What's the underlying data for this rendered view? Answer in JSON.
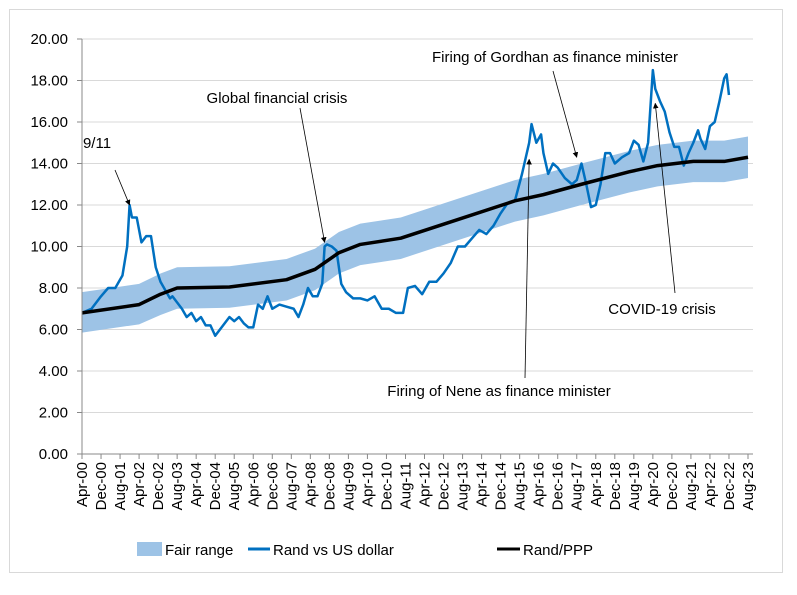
{
  "chart_data": {
    "type": "line",
    "title": "",
    "xlabel": "",
    "ylabel": "",
    "ylim": [
      0,
      20
    ],
    "y_ticks": [
      "0.00",
      "2.00",
      "4.00",
      "6.00",
      "8.00",
      "10.00",
      "12.00",
      "14.00",
      "16.00",
      "18.00",
      "20.00"
    ],
    "x_range": [
      "2000-04",
      "2023-08"
    ],
    "x_tick_labels": [
      "Apr-00",
      "Dec-00",
      "Aug-01",
      "Apr-02",
      "Dec-02",
      "Aug-03",
      "Apr-04",
      "Dec-04",
      "Aug-05",
      "Apr-06",
      "Dec-06",
      "Aug-07",
      "Apr-08",
      "Dec-08",
      "Aug-09",
      "Apr-10",
      "Dec-10",
      "Aug-11",
      "Apr-12",
      "Dec-12",
      "Aug-13",
      "Apr-14",
      "Dec-14",
      "Aug-15",
      "Apr-16",
      "Dec-16",
      "Aug-17",
      "Apr-18",
      "Dec-18",
      "Aug-19",
      "Apr-20",
      "Dec-20",
      "Aug-21",
      "Apr-22",
      "Dec-22",
      "Aug-23"
    ],
    "grid": "horizontal",
    "legend_position": "bottom",
    "colors": {
      "fair_range": "#9dc3e6",
      "rand": "#0070c0",
      "ppp": "#000000"
    },
    "series": [
      {
        "name": "Fair range",
        "type": "band",
        "x": [
          "2000-04",
          "2002-04",
          "2003-01",
          "2003-08",
          "2005-06",
          "2007-06",
          "2008-06",
          "2009-04",
          "2010-01",
          "2011-06",
          "2013-06",
          "2015-06",
          "2016-06",
          "2017-10",
          "2019-06",
          "2020-06",
          "2021-09",
          "2022-10",
          "2023-08"
        ],
        "lower": [
          5.85,
          6.25,
          6.7,
          7.0,
          7.05,
          7.4,
          7.9,
          8.7,
          9.1,
          9.4,
          10.3,
          11.2,
          11.5,
          12.0,
          12.6,
          12.9,
          13.1,
          13.1,
          13.3
        ],
        "upper": [
          7.8,
          8.2,
          8.7,
          9.0,
          9.05,
          9.4,
          9.9,
          10.7,
          11.1,
          11.4,
          12.3,
          13.2,
          13.5,
          14.0,
          14.6,
          14.9,
          15.1,
          15.1,
          15.3
        ]
      },
      {
        "name": "Rand vs US dollar",
        "type": "line",
        "x": [
          "2000-04",
          "2000-08",
          "2000-12",
          "2001-03",
          "2001-06",
          "2001-09",
          "2001-11",
          "2001-12",
          "2002-01",
          "2002-03",
          "2002-05",
          "2002-07",
          "2002-09",
          "2002-11",
          "2003-01",
          "2003-03",
          "2003-05",
          "2003-06",
          "2003-08",
          "2003-10",
          "2003-12",
          "2004-02",
          "2004-04",
          "2004-06",
          "2004-08",
          "2004-10",
          "2004-12",
          "2005-02",
          "2005-04",
          "2005-06",
          "2005-08",
          "2005-10",
          "2005-12",
          "2006-02",
          "2006-04",
          "2006-06",
          "2006-08",
          "2006-10",
          "2006-12",
          "2007-03",
          "2007-06",
          "2007-09",
          "2007-11",
          "2008-01",
          "2008-03",
          "2008-05",
          "2008-07",
          "2008-09",
          "2008-10",
          "2008-11",
          "2009-01",
          "2009-03",
          "2009-05",
          "2009-07",
          "2009-10",
          "2010-01",
          "2010-04",
          "2010-07",
          "2010-10",
          "2011-01",
          "2011-04",
          "2011-07",
          "2011-09",
          "2011-12",
          "2012-03",
          "2012-06",
          "2012-09",
          "2012-12",
          "2013-03",
          "2013-06",
          "2013-09",
          "2013-12",
          "2014-03",
          "2014-06",
          "2014-09",
          "2014-12",
          "2015-03",
          "2015-06",
          "2015-09",
          "2015-12",
          "2016-01",
          "2016-03",
          "2016-05",
          "2016-06",
          "2016-08",
          "2016-10",
          "2016-12",
          "2017-03",
          "2017-06",
          "2017-08",
          "2017-10",
          "2017-12",
          "2018-02",
          "2018-04",
          "2018-06",
          "2018-08",
          "2018-10",
          "2018-12",
          "2019-03",
          "2019-06",
          "2019-08",
          "2019-10",
          "2019-12",
          "2020-02",
          "2020-04",
          "2020-05",
          "2020-07",
          "2020-09",
          "2020-11",
          "2021-01",
          "2021-03",
          "2021-05",
          "2021-07",
          "2021-09",
          "2021-11",
          "2021-12",
          "2022-02",
          "2022-04",
          "2022-06",
          "2022-08",
          "2022-10",
          "2022-11",
          "2022-12"
        ],
        "values": [
          6.8,
          7.0,
          7.6,
          8.0,
          8.0,
          8.6,
          10.0,
          12.0,
          11.4,
          11.4,
          10.2,
          10.5,
          10.5,
          9.0,
          8.3,
          7.9,
          7.5,
          7.6,
          7.3,
          7.0,
          6.6,
          6.8,
          6.4,
          6.6,
          6.2,
          6.2,
          5.7,
          6.0,
          6.3,
          6.6,
          6.4,
          6.6,
          6.3,
          6.1,
          6.1,
          7.2,
          7.0,
          7.6,
          7.0,
          7.2,
          7.1,
          7.0,
          6.6,
          7.2,
          8.0,
          7.6,
          7.6,
          8.2,
          10.0,
          10.1,
          10.0,
          9.8,
          8.2,
          7.8,
          7.5,
          7.5,
          7.4,
          7.6,
          7.0,
          7.0,
          6.8,
          6.8,
          8.0,
          8.1,
          7.7,
          8.3,
          8.3,
          8.7,
          9.2,
          10.0,
          10.0,
          10.4,
          10.8,
          10.6,
          11.0,
          11.6,
          12.1,
          12.2,
          13.5,
          15.0,
          15.9,
          15.0,
          15.4,
          14.5,
          13.5,
          14.0,
          13.8,
          13.3,
          13.0,
          13.2,
          14.0,
          13.0,
          11.9,
          12.0,
          13.0,
          14.5,
          14.5,
          14.0,
          14.3,
          14.5,
          15.1,
          14.9,
          14.1,
          15.0,
          18.5,
          17.6,
          17.0,
          16.5,
          15.5,
          14.8,
          14.8,
          13.9,
          14.5,
          15.0,
          15.6,
          15.2,
          14.7,
          15.8,
          16.0,
          17.0,
          18.1,
          18.3,
          17.3
        ]
      },
      {
        "name": "Rand/PPP",
        "type": "line",
        "x": [
          "2000-04",
          "2002-04",
          "2003-01",
          "2003-08",
          "2005-06",
          "2007-06",
          "2008-06",
          "2009-04",
          "2010-01",
          "2011-06",
          "2013-06",
          "2015-06",
          "2016-06",
          "2017-10",
          "2019-06",
          "2020-06",
          "2021-09",
          "2022-10",
          "2023-08"
        ],
        "values": [
          6.8,
          7.2,
          7.7,
          8.0,
          8.05,
          8.4,
          8.9,
          9.7,
          10.1,
          10.4,
          11.3,
          12.2,
          12.5,
          13.0,
          13.6,
          13.9,
          14.1,
          14.1,
          14.3
        ]
      }
    ],
    "annotations": [
      {
        "label": "9/11",
        "x": "2001-12",
        "y": 12.0
      },
      {
        "label": "Global financial crisis",
        "x": "2008-10",
        "y": 10.2
      },
      {
        "label": "Firing of Gordhan as finance minister",
        "x": "2017-08",
        "y": 14.3
      },
      {
        "label": "Firing of Nene as finance minister",
        "x": "2015-12",
        "y": 14.2
      },
      {
        "label": "COVID-19 crisis",
        "x": "2020-05",
        "y": 16.9
      }
    ]
  }
}
